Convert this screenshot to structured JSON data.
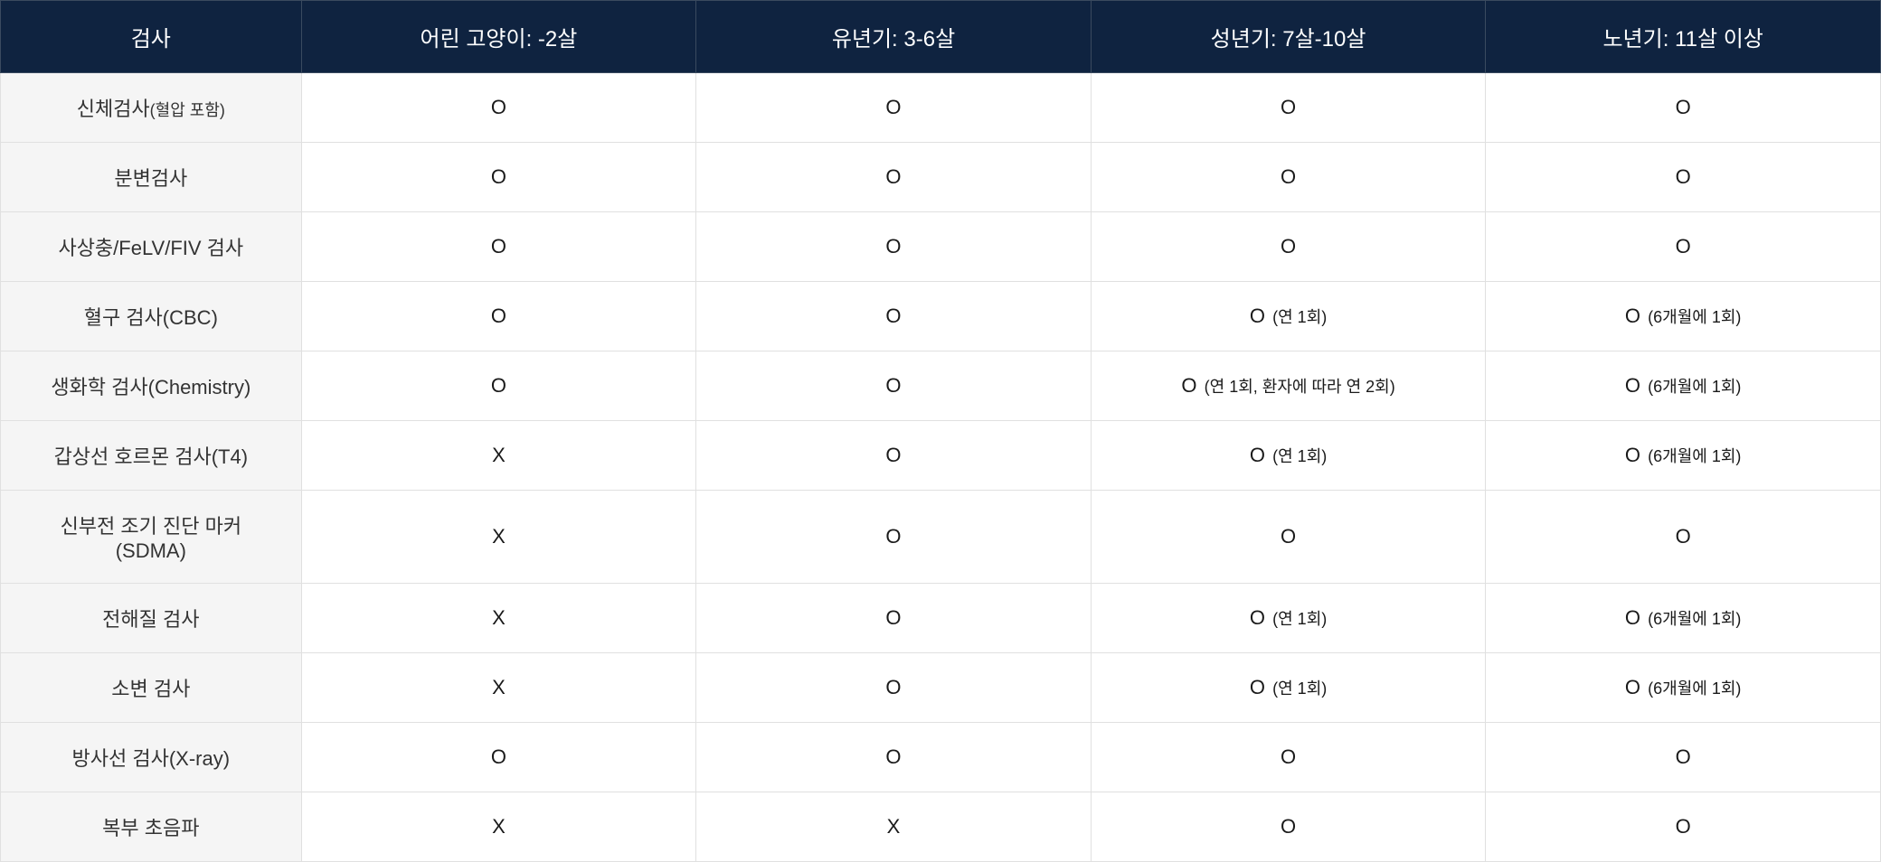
{
  "table": {
    "colors": {
      "header_bg": "#0f2340",
      "header_text": "#ffffff",
      "header_border": "#3a4a5f",
      "row_header_bg": "#f5f5f5",
      "cell_bg": "#ffffff",
      "cell_border": "#e0e0e0",
      "text": "#1a1a1a"
    },
    "typography": {
      "header_fontsize": 24,
      "cell_fontsize": 22,
      "sub_fontsize": 18
    },
    "layout": {
      "first_col_width_pct": 16,
      "other_col_width_pct": 21,
      "cell_padding_v": 22,
      "cell_padding_h": 10
    },
    "columns": [
      "검사",
      "어린 고양이: -2살",
      "유년기: 3-6살",
      "성년기: 7살-10살",
      "노년기: 11살 이상"
    ],
    "rows": [
      {
        "label_main": "신체검사",
        "label_sub": "(혈압 포함)",
        "cells": [
          {
            "main": "O",
            "sub": ""
          },
          {
            "main": "O",
            "sub": ""
          },
          {
            "main": "O",
            "sub": ""
          },
          {
            "main": "O",
            "sub": ""
          }
        ]
      },
      {
        "label_main": "분변검사",
        "label_sub": "",
        "cells": [
          {
            "main": "O",
            "sub": ""
          },
          {
            "main": "O",
            "sub": ""
          },
          {
            "main": "O",
            "sub": ""
          },
          {
            "main": "O",
            "sub": ""
          }
        ]
      },
      {
        "label_main": "사상충/FeLV/FIV 검사",
        "label_sub": "",
        "cells": [
          {
            "main": "O",
            "sub": ""
          },
          {
            "main": "O",
            "sub": ""
          },
          {
            "main": "O",
            "sub": ""
          },
          {
            "main": "O",
            "sub": ""
          }
        ]
      },
      {
        "label_main": "혈구 검사(CBC)",
        "label_sub": "",
        "cells": [
          {
            "main": "O",
            "sub": ""
          },
          {
            "main": "O",
            "sub": ""
          },
          {
            "main": "O",
            "sub": "(연 1회)"
          },
          {
            "main": "O",
            "sub": "(6개월에 1회)"
          }
        ]
      },
      {
        "label_main": "생화학 검사(Chemistry)",
        "label_sub": "",
        "cells": [
          {
            "main": "O",
            "sub": ""
          },
          {
            "main": "O",
            "sub": ""
          },
          {
            "main": "O",
            "sub": "(연 1회, 환자에 따라 연 2회)"
          },
          {
            "main": "O",
            "sub": "(6개월에 1회)"
          }
        ]
      },
      {
        "label_main": "갑상선 호르몬 검사(T4)",
        "label_sub": "",
        "cells": [
          {
            "main": "X",
            "sub": ""
          },
          {
            "main": "O",
            "sub": ""
          },
          {
            "main": "O",
            "sub": "(연 1회)"
          },
          {
            "main": "O",
            "sub": "(6개월에 1회)"
          }
        ]
      },
      {
        "label_main": "신부전 조기 진단 마커",
        "label_sub": "(SDMA)",
        "label_multiline": true,
        "cells": [
          {
            "main": "X",
            "sub": ""
          },
          {
            "main": "O",
            "sub": ""
          },
          {
            "main": "O",
            "sub": ""
          },
          {
            "main": "O",
            "sub": ""
          }
        ]
      },
      {
        "label_main": "전해질 검사",
        "label_sub": "",
        "cells": [
          {
            "main": "X",
            "sub": ""
          },
          {
            "main": "O",
            "sub": ""
          },
          {
            "main": "O",
            "sub": "(연 1회)"
          },
          {
            "main": "O",
            "sub": "(6개월에 1회)"
          }
        ]
      },
      {
        "label_main": "소변 검사",
        "label_sub": "",
        "cells": [
          {
            "main": "X",
            "sub": ""
          },
          {
            "main": "O",
            "sub": ""
          },
          {
            "main": "O",
            "sub": "(연 1회)"
          },
          {
            "main": "O",
            "sub": "(6개월에 1회)"
          }
        ]
      },
      {
        "label_main": "방사선 검사(X-ray)",
        "label_sub": "",
        "cells": [
          {
            "main": "O",
            "sub": ""
          },
          {
            "main": "O",
            "sub": ""
          },
          {
            "main": "O",
            "sub": ""
          },
          {
            "main": "O",
            "sub": ""
          }
        ]
      },
      {
        "label_main": "복부 초음파",
        "label_sub": "",
        "cells": [
          {
            "main": "X",
            "sub": ""
          },
          {
            "main": "X",
            "sub": ""
          },
          {
            "main": "O",
            "sub": ""
          },
          {
            "main": "O",
            "sub": ""
          }
        ]
      }
    ]
  }
}
